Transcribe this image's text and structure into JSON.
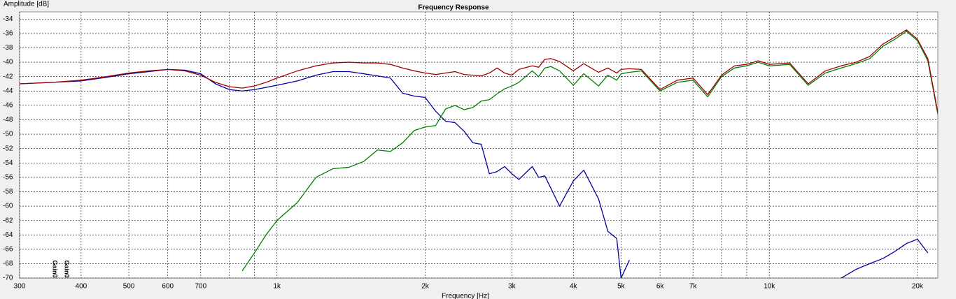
{
  "chart_data": {
    "type": "line",
    "title": "Frequency Response",
    "y_label": "Amplitude [dB]",
    "x_label": "Frequency [Hz]",
    "xscale": "log",
    "grid": true,
    "xlim": [
      300,
      22000
    ],
    "ylim": [
      -70,
      -33
    ],
    "xticks": [
      300,
      400,
      500,
      600,
      700,
      {
        "value": 1000,
        "label": "1k"
      },
      {
        "value": 2000,
        "label": "2k"
      },
      {
        "value": 3000,
        "label": "3k"
      },
      {
        "value": 4000,
        "label": "4k"
      },
      {
        "value": 5000,
        "label": "5k"
      },
      {
        "value": 6000,
        "label": "6k"
      },
      {
        "value": 7000,
        "label": "7k"
      },
      {
        "value": 10000,
        "label": "10k"
      },
      {
        "value": 20000,
        "label": "20k"
      }
    ],
    "xminorticks": [
      800,
      900,
      8000,
      9000
    ],
    "yticks": [
      -34,
      -36,
      -38,
      -40,
      -42,
      -44,
      -46,
      -48,
      -50,
      -52,
      -54,
      -56,
      -58,
      -60,
      -62,
      -64,
      -66,
      -68,
      -70
    ],
    "x": [
      300,
      350,
      400,
      450,
      500,
      550,
      600,
      650,
      700,
      750,
      800,
      850,
      900,
      950,
      1000,
      1100,
      1200,
      1300,
      1400,
      1500,
      1600,
      1700,
      1800,
      1900,
      2000,
      2100,
      2200,
      2300,
      2400,
      2500,
      2600,
      2700,
      2800,
      2900,
      3000,
      3100,
      3300,
      3400,
      3500,
      3600,
      3750,
      4000,
      4200,
      4500,
      4700,
      4900,
      5000,
      5200,
      5500,
      6000,
      6500,
      7000,
      7500,
      8000,
      8500,
      9000,
      9500,
      10000,
      11000,
      12000,
      13000,
      14000,
      15000,
      16000,
      17000,
      18000,
      19000,
      20000,
      21000,
      22000
    ],
    "series": [
      {
        "color": "#0000a0",
        "values": [
          -43,
          -42.8,
          -42.6,
          -42.1,
          -41.6,
          -41.3,
          -41,
          -41.1,
          -41.6,
          -43,
          -43.8,
          -44,
          -43.8,
          -43.5,
          -43.2,
          -42.6,
          -41.8,
          -41.3,
          -41.3,
          -41.6,
          -41.9,
          -42.2,
          -44.3,
          -44.7,
          -44.9,
          -46.8,
          -48.2,
          -48.4,
          -49.6,
          -51.2,
          -51.4,
          -55.5,
          -55.2,
          -54.5,
          -55.5,
          -56.3,
          -54.5,
          -56,
          -55.8,
          -57.5,
          -60,
          -56.5,
          -55,
          -59,
          -63.5,
          -64.5,
          -70,
          -67.5,
          null,
          null,
          null,
          null,
          null,
          null,
          null,
          null,
          null,
          null,
          null,
          null,
          null,
          -70,
          -68.8,
          -68,
          -67.3,
          -66.3,
          -65.2,
          -64.6,
          -66.5,
          null
        ]
      },
      {
        "color": "#008000",
        "values": [
          null,
          null,
          null,
          null,
          null,
          null,
          null,
          null,
          null,
          null,
          null,
          -69,
          -66.5,
          -64,
          -62,
          -59.5,
          -56,
          -54.8,
          -54.6,
          -53.8,
          -52.2,
          -52.4,
          -51.2,
          -49.5,
          -49,
          -48.8,
          -46.5,
          -46,
          -46.6,
          -46.3,
          -45.4,
          -45.2,
          -44.4,
          -43.7,
          -43.3,
          -42.8,
          -41.2,
          -42,
          -40.8,
          -40.6,
          -41.2,
          -43.2,
          -41.6,
          -43.3,
          -41.8,
          -42.5,
          -41.6,
          -41.4,
          -41.2,
          -44,
          -42.8,
          -42.5,
          -44.8,
          -42,
          -40.8,
          -40.5,
          -40,
          -40.5,
          -40.3,
          -43.2,
          -41.5,
          -40.8,
          -40.2,
          -39.5,
          -37.8,
          -36.8,
          -35.7,
          -37,
          -39.8,
          -47.2
        ]
      },
      {
        "color": "#a00000",
        "values": [
          -43,
          -42.8,
          -42.5,
          -42,
          -41.5,
          -41.2,
          -41,
          -41.2,
          -41.8,
          -42.8,
          -43.4,
          -43.6,
          -43.3,
          -42.8,
          -42.2,
          -41.2,
          -40.5,
          -40.1,
          -40,
          -40.1,
          -40.1,
          -40.3,
          -40.8,
          -41.2,
          -41.5,
          -41.7,
          -41.5,
          -41.3,
          -41.7,
          -41.8,
          -41.9,
          -41.5,
          -40.8,
          -41.5,
          -41.8,
          -41,
          -40.5,
          -40.7,
          -39.6,
          -39.5,
          -39.9,
          -41.2,
          -40.2,
          -41.4,
          -40.8,
          -41.5,
          -41,
          -40.9,
          -41,
          -43.8,
          -42.5,
          -42.2,
          -44.5,
          -41.8,
          -40.5,
          -40.3,
          -39.8,
          -40.3,
          -40.1,
          -43,
          -41.2,
          -40.5,
          -40,
          -39.2,
          -37.5,
          -36.5,
          -35.5,
          -36.8,
          -39.5,
          -47
        ]
      }
    ],
    "annotations": [
      {
        "text": "Gain0",
        "color": "#008000"
      },
      {
        "text": "Gain0",
        "color": "#a00000"
      }
    ]
  }
}
